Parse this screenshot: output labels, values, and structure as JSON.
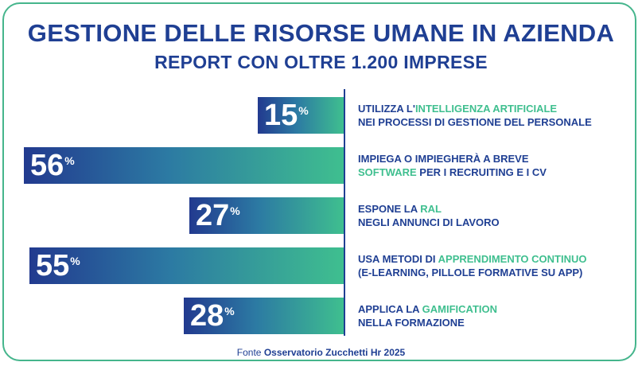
{
  "chart_data": {
    "type": "bar",
    "orientation": "horizontal",
    "title": "GESTIONE DELLE RISORSE UMANE IN AZIENDA",
    "subtitle": "REPORT CON OLTRE 1.200 IMPRESE",
    "unit": "%",
    "categories": [
      "UTILIZZA L'INTELLIGENZA ARTIFICIALE NEI PROCESSI DI GESTIONE DEL PERSONALE",
      "IMPIEGA O IMPIEGHERÀ A BREVE SOFTWARE PER I RECRUITING E I CV",
      "ESPONE LA RAL NEGLI ANNUNCI DI LAVORO",
      "USA METODI DI APPRENDIMENTO CONTINUO (E-LEARNING, PILLOLE FORMATIVE SU APP)",
      "APPLICA LA GAMIFICATION NELLA FORMAZIONE"
    ],
    "values": [
      15,
      56,
      27,
      55,
      28
    ],
    "bar_labels": [
      "15",
      "56",
      "27",
      "55",
      "28"
    ],
    "descriptions": [
      {
        "pre": "UTILIZZA L'",
        "hl": "INTELLIGENZA ARTIFICIALE",
        "post": "",
        "line2_pre": "",
        "line2_hl": "",
        "line2": "NEI PROCESSI DI GESTIONE DEL PERSONALE"
      },
      {
        "pre": "IMPIEGA O IMPIEGHERÀ A BREVE",
        "hl": "",
        "post": "",
        "line2_pre": "",
        "line2_hl": "SOFTWARE",
        "line2": " PER I RECRUITING E I CV"
      },
      {
        "pre": "ESPONE LA ",
        "hl": "RAL",
        "post": "",
        "line2_pre": "",
        "line2_hl": "",
        "line2": "NEGLI ANNUNCI DI LAVORO"
      },
      {
        "pre": "USA METODI DI ",
        "hl": "APPRENDIMENTO CONTINUO",
        "post": "",
        "line2_pre": "",
        "line2_hl": "",
        "line2": "(E-LEARNING, PILLOLE FORMATIVE SU APP)"
      },
      {
        "pre": "APPLICA LA ",
        "hl": "GAMIFICATION",
        "post": "",
        "line2_pre": "",
        "line2_hl": "",
        "line2": "NELLA FORMAZIONE"
      }
    ],
    "xlim": [
      0,
      56
    ],
    "grid": false,
    "legend": "none"
  },
  "source": {
    "prefix": "Fonte ",
    "name": "Osservatorio Zucchetti Hr 2025"
  },
  "colors": {
    "title": "#1f3f93",
    "accent": "#3fbf8f",
    "bar_start": "#223a8f",
    "bar_end": "#3fbf8f",
    "border": "#45b58c"
  }
}
